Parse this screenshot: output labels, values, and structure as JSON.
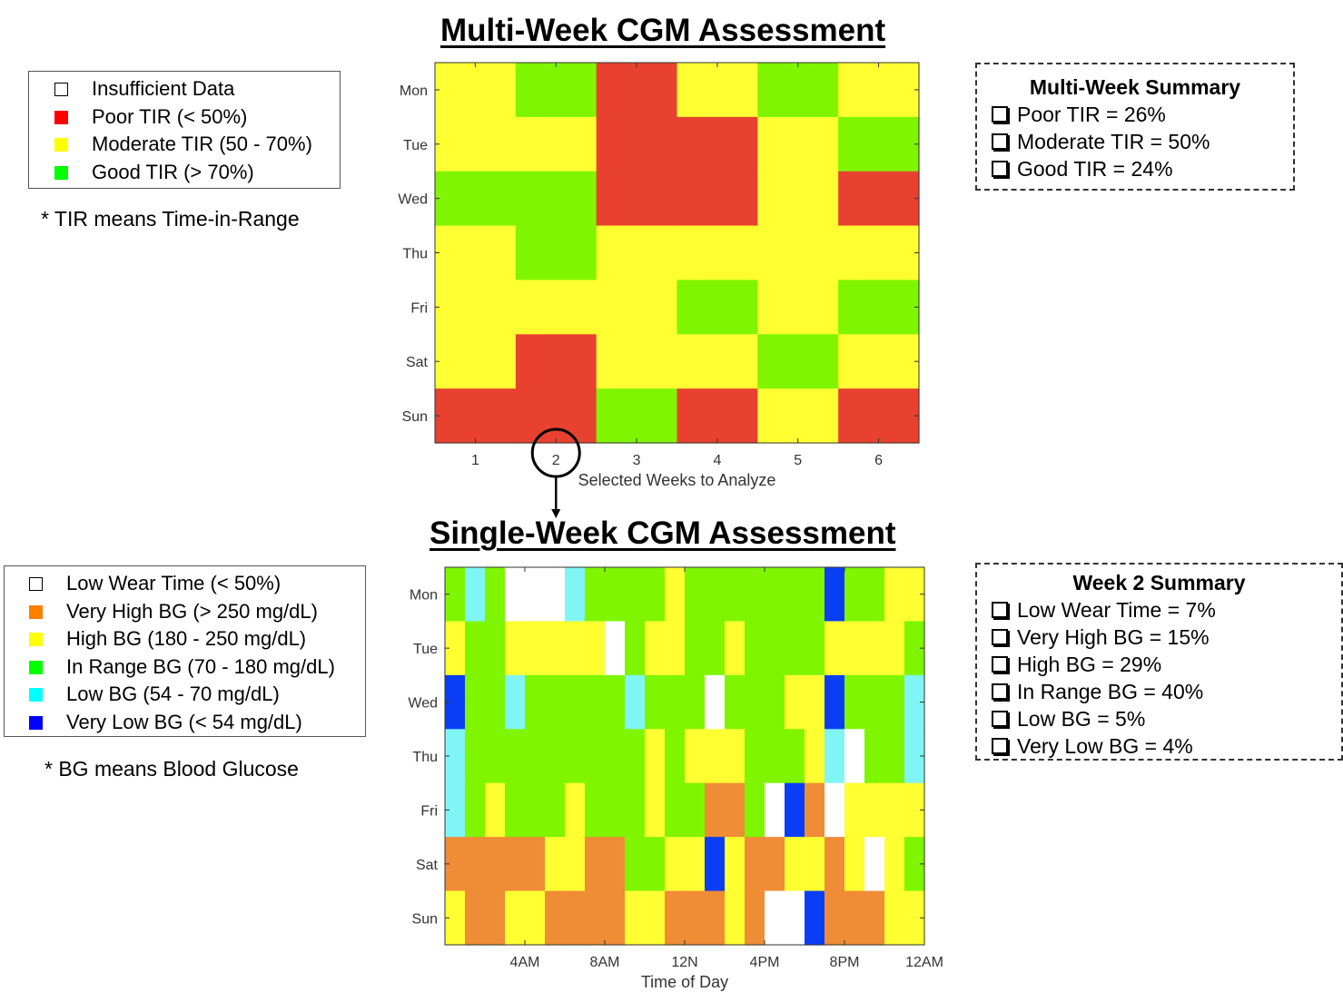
{
  "top": {
    "title": "Multi-Week CGM Assessment",
    "legend": [
      {
        "label": "Insufficient Data",
        "color": "#ffffff"
      },
      {
        "label": "Poor TIR (< 50%)",
        "color": "#ff0000"
      },
      {
        "label": "Moderate TIR (50 - 70%)",
        "color": "#ffff00"
      },
      {
        "label": "Good TIR (> 70%)",
        "color": "#00ff00"
      }
    ],
    "note": "* TIR means Time-in-Range",
    "summary": {
      "title": "Multi-Week Summary",
      "rows": [
        "Poor TIR = 26%",
        "Moderate TIR = 50%",
        "Good TIR = 24%"
      ]
    }
  },
  "bottom": {
    "title": "Single-Week CGM Assessment",
    "legend": [
      {
        "label": "Low Wear Time (< 50%)",
        "color": "#ffffff"
      },
      {
        "label": "Very High BG (> 250 mg/dL)",
        "color": "#ff8000"
      },
      {
        "label": "High BG (180 - 250 mg/dL)",
        "color": "#ffff00"
      },
      {
        "label": "In Range BG (70 - 180 mg/dL)",
        "color": "#00ff00"
      },
      {
        "label": "Low BG (54 - 70 mg/dL)",
        "color": "#00ffff"
      },
      {
        "label": "Very Low BG (< 54 mg/dL)",
        "color": "#0000ff"
      }
    ],
    "note": "* BG means Blood Glucose",
    "summary": {
      "title": "Week 2 Summary",
      "rows": [
        "Low Wear Time = 7%",
        "Very High BG = 15%",
        "High BG = 29%",
        "In Range BG = 40%",
        "Low BG = 5%",
        "Very Low BG = 4%"
      ]
    }
  },
  "colors": {
    "W": "#ffffff",
    "R": "#e8412f",
    "Y": "#ffff32",
    "G": "#7ff500",
    "O": "#ef8c36",
    "C": "#80f5f5",
    "B": "#0a3ef5"
  },
  "chart_data": [
    {
      "type": "heatmap",
      "xlabel": "Selected Weeks to Analyze",
      "x": [
        "1",
        "2",
        "3",
        "4",
        "5",
        "6"
      ],
      "y": [
        "Mon",
        "Tue",
        "Wed",
        "Thu",
        "Fri",
        "Sat",
        "Sun"
      ],
      "highlighted_x": "2",
      "cells": [
        "YGRYGY",
        "YYRRYG",
        "GGRRYR",
        "YGYYYY",
        "YYYGYG",
        "YRYYGY",
        "RRGRYR"
      ]
    },
    {
      "type": "heatmap",
      "xlabel": "Time of Day",
      "x_tick_labels": [
        "4AM",
        "8AM",
        "12N",
        "4PM",
        "8PM",
        "12AM"
      ],
      "y": [
        "Mon",
        "Tue",
        "Wed",
        "Thu",
        "Fri",
        "Sat",
        "Sun"
      ],
      "hours_per_row": 24,
      "cells": [
        "GCGWWWCGGGGYGGGGGGGBGGYY",
        "YGGYYYYYWGYYGGYGGGGYYYYG",
        "BGGCGGGGGCGGGWGGGYYBGGGC",
        "CGGGGGGGGGYGYYYGGGYCWGGC",
        "CGYGGGYGGGYGGOOGWBOWYYYY",
        "OOOOOYYOOGGYYBYOOYYOYWYG",
        "YOOYYOOOOYYOOOYOWWBOOOYY"
      ]
    }
  ]
}
